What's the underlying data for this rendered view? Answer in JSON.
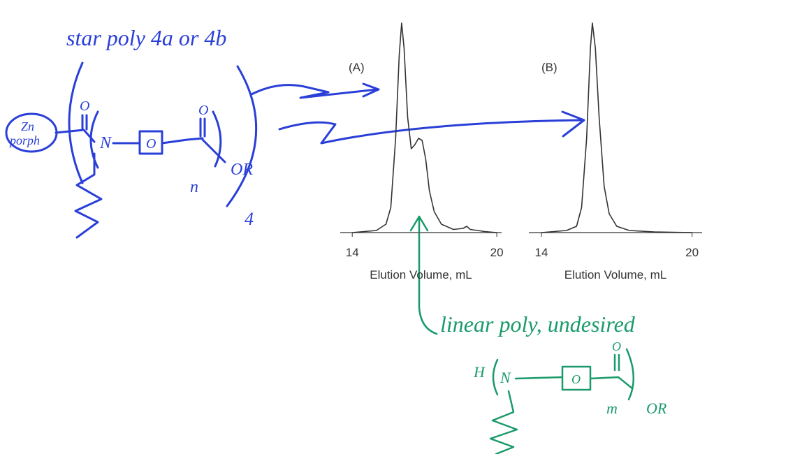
{
  "chart_data": [
    {
      "type": "line",
      "label": "(A)",
      "xlabel": "Elution Volume, mL",
      "x": [
        14.0,
        15.0,
        15.4,
        15.6,
        15.8,
        15.95,
        16.05,
        16.15,
        16.3,
        16.45,
        16.6,
        16.75,
        16.9,
        17.05,
        17.2,
        17.4,
        17.7,
        18.2,
        18.6,
        18.75,
        18.9,
        19.5,
        20.0
      ],
      "series": [
        {
          "color": "#333333",
          "values": [
            0,
            1,
            4,
            12,
            45,
            85,
            100,
            88,
            55,
            40,
            42,
            45,
            44,
            35,
            20,
            10,
            4,
            1.5,
            2,
            3,
            1.5,
            0.5,
            0
          ]
        }
      ],
      "xlim": [
        13.5,
        20.2
      ],
      "xticks": [
        14,
        20
      ],
      "ylim": [
        0,
        100
      ]
    },
    {
      "type": "line",
      "label": "(B)",
      "xlabel": "Elution Volume, mL",
      "x": [
        14.0,
        15.0,
        15.4,
        15.6,
        15.8,
        15.95,
        16.03,
        16.15,
        16.3,
        16.5,
        16.7,
        17.0,
        17.5,
        18.5,
        20.0
      ],
      "series": [
        {
          "color": "#333333",
          "values": [
            0,
            1,
            3,
            12,
            45,
            88,
            100,
            88,
            55,
            22,
            9,
            3,
            1,
            0.3,
            0
          ]
        }
      ],
      "xlim": [
        13.5,
        20.4
      ],
      "xticks": [
        14,
        20
      ],
      "ylim": [
        0,
        100
      ]
    }
  ],
  "annotations": {
    "star_label": "star poly 4a or 4b",
    "star_structure": {
      "catalyst_top": "Zn",
      "catalyst_bottom": "porph",
      "carbonyl_o": "O",
      "n_atom": "N",
      "ring": "O",
      "ester_o": "O",
      "terminal": "OR",
      "repeat": "n",
      "arms": "4"
    },
    "linear_label": "linear poly, undesired",
    "linear_structure": {
      "end_group": "H",
      "n_atom": "N",
      "ring": "O",
      "carbonyl_o": "O",
      "repeat": "m",
      "terminal": "OR"
    }
  }
}
